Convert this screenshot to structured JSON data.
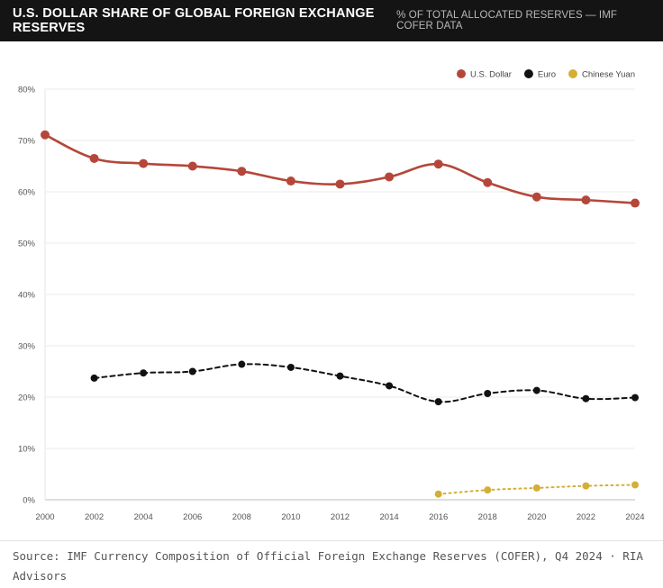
{
  "header": {
    "title": "U.S. DOLLAR SHARE OF GLOBAL FOREIGN EXCHANGE RESERVES",
    "subtitle": "% OF TOTAL ALLOCATED RESERVES — IMF COFER DATA"
  },
  "footer": {
    "source": "Source: IMF Currency Composition of Official Foreign Exchange Reserves (COFER), Q4 2024 · RIA Advisors"
  },
  "chart_data": {
    "type": "line",
    "legend_position": "top-right",
    "grid": true,
    "ylim": [
      0,
      80
    ],
    "xlim": [
      2000,
      2024
    ],
    "yticks": [
      "0%",
      "10%",
      "20%",
      "30%",
      "40%",
      "50%",
      "60%",
      "70%",
      "80%"
    ],
    "xticks": [
      "2000",
      "2002",
      "2004",
      "2006",
      "2008",
      "2010",
      "2012",
      "2014",
      "2016",
      "2018",
      "2020",
      "2022",
      "2024"
    ],
    "series": [
      {
        "name": "U.S. Dollar",
        "color": "#b5473a",
        "style": "solid",
        "x": [
          2000,
          2002,
          2004,
          2006,
          2008,
          2010,
          2012,
          2014,
          2016,
          2018,
          2020,
          2022,
          2024
        ],
        "values": [
          71.1,
          66.5,
          65.5,
          65.0,
          64.0,
          62.1,
          61.5,
          62.9,
          65.4,
          61.8,
          59.0,
          58.4,
          57.8
        ]
      },
      {
        "name": "Euro",
        "color": "#111111",
        "style": "dashed",
        "x": [
          2002,
          2004,
          2006,
          2008,
          2010,
          2012,
          2014,
          2016,
          2018,
          2020,
          2022,
          2024
        ],
        "values": [
          23.7,
          24.7,
          25.0,
          26.4,
          25.8,
          24.1,
          22.2,
          19.1,
          20.7,
          21.3,
          19.7,
          19.9
        ]
      },
      {
        "name": "Chinese Yuan",
        "color": "#d4af37",
        "style": "dotted",
        "x": [
          2016,
          2018,
          2020,
          2022,
          2024
        ],
        "values": [
          1.1,
          1.9,
          2.3,
          2.7,
          2.9
        ]
      }
    ]
  }
}
